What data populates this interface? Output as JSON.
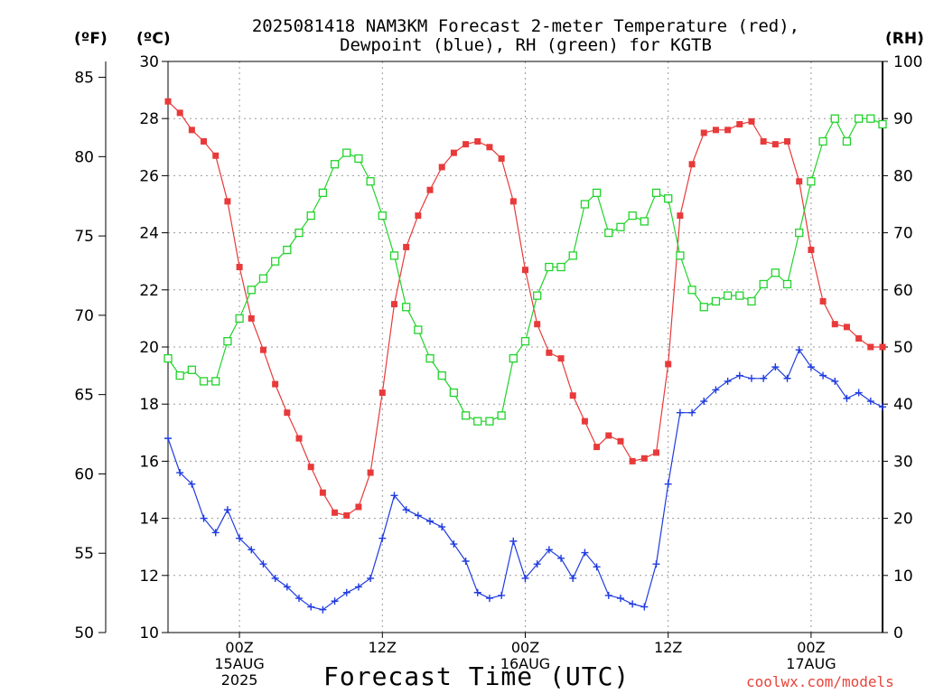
{
  "chart_data": {
    "type": "line",
    "title_line1": "2025081418 NAM3KM Forecast 2-meter Temperature (red),",
    "title_line2": "Dewpoint (blue), RH (green) for KGTB",
    "unit_f": "(ºF)",
    "unit_c": "(ºC)",
    "unit_rh": "(RH)",
    "xlabel": "Forecast Time (UTC)",
    "credit": "coolwx.com/models",
    "x_range_hours": [
      18,
      78
    ],
    "ylim_c": [
      10,
      30
    ],
    "ylim_f": [
      50,
      86
    ],
    "ylim_rh": [
      0,
      100
    ],
    "grid": true,
    "x_ticks": [
      {
        "hour": 24,
        "lines": [
          "00Z",
          "15AUG",
          "2025"
        ]
      },
      {
        "hour": 36,
        "lines": [
          "12Z"
        ]
      },
      {
        "hour": 48,
        "lines": [
          "00Z",
          "16AUG"
        ]
      },
      {
        "hour": 60,
        "lines": [
          "12Z"
        ]
      },
      {
        "hour": 72,
        "lines": [
          "00Z",
          "17AUG"
        ]
      }
    ],
    "y_ticks_c": [
      "10",
      "12",
      "14",
      "16",
      "18",
      "20",
      "22",
      "24",
      "26",
      "28",
      "30"
    ],
    "y_ticks_f": [
      "50",
      "55",
      "60",
      "65",
      "70",
      "75",
      "80",
      "85"
    ],
    "y_ticks_rh": [
      "0",
      "10",
      "20",
      "30",
      "40",
      "50",
      "60",
      "70",
      "80",
      "90",
      "100"
    ],
    "series": [
      {
        "name": "Temperature",
        "unit": "°C",
        "color": "#e83a3a",
        "marker": "filled-square",
        "x": [
          18,
          19,
          20,
          21,
          22,
          23,
          24,
          25,
          26,
          27,
          28,
          29,
          30,
          31,
          32,
          33,
          34,
          35,
          36,
          37,
          38,
          39,
          40,
          41,
          42,
          43,
          44,
          45,
          46,
          47,
          48,
          49,
          50,
          51,
          52,
          53,
          54,
          55,
          56,
          57,
          58,
          59,
          60,
          61,
          62,
          63,
          64,
          65,
          66,
          67,
          68,
          69,
          70,
          71,
          72,
          73,
          74,
          75,
          76,
          77,
          78
        ],
        "values": [
          28.6,
          28.2,
          27.6,
          27.2,
          26.7,
          25.1,
          22.8,
          21.0,
          19.9,
          18.7,
          17.7,
          16.8,
          15.8,
          14.9,
          14.2,
          14.1,
          14.4,
          15.6,
          18.4,
          21.5,
          23.5,
          24.6,
          25.5,
          26.3,
          26.8,
          27.1,
          27.2,
          27.0,
          26.6,
          25.1,
          22.7,
          20.8,
          19.8,
          19.6,
          18.3,
          17.4,
          16.5,
          16.9,
          16.7,
          16.0,
          16.1,
          16.3,
          19.4,
          24.6,
          26.4,
          27.5,
          27.6,
          27.6,
          27.8,
          27.9,
          27.2,
          27.1,
          27.2,
          25.8,
          23.4,
          21.6,
          20.8,
          20.7,
          20.3,
          20.0,
          20.0
        ]
      },
      {
        "name": "Dewpoint",
        "unit": "°C",
        "color": "#1f3be0",
        "marker": "plus",
        "x": [
          18,
          19,
          20,
          21,
          22,
          23,
          24,
          25,
          26,
          27,
          28,
          29,
          30,
          31,
          32,
          33,
          34,
          35,
          36,
          37,
          38,
          39,
          40,
          41,
          42,
          43,
          44,
          45,
          46,
          47,
          48,
          49,
          50,
          51,
          52,
          53,
          54,
          55,
          56,
          57,
          58,
          59,
          60,
          61,
          62,
          63,
          64,
          65,
          66,
          67,
          68,
          69,
          70,
          71,
          72,
          73,
          74,
          75,
          76,
          77,
          78
        ],
        "values": [
          16.8,
          15.6,
          15.2,
          14.0,
          13.5,
          14.3,
          13.3,
          12.9,
          12.4,
          11.9,
          11.6,
          11.2,
          10.9,
          10.8,
          11.1,
          11.4,
          11.6,
          11.9,
          13.3,
          14.8,
          14.3,
          14.1,
          13.9,
          13.7,
          13.1,
          12.5,
          11.4,
          11.2,
          11.3,
          13.2,
          11.9,
          12.4,
          12.9,
          12.6,
          11.9,
          12.8,
          12.3,
          11.3,
          11.2,
          11.0,
          10.9,
          12.4,
          15.2,
          17.7,
          17.7,
          18.1,
          18.5,
          18.8,
          19.0,
          18.9,
          18.9,
          19.3,
          18.9,
          19.9,
          19.3,
          19.0,
          18.8,
          18.2,
          18.4,
          18.1,
          17.9
        ]
      },
      {
        "name": "RH",
        "unit": "%",
        "color": "#22d32c",
        "marker": "open-square",
        "x": [
          18,
          19,
          20,
          21,
          22,
          23,
          24,
          25,
          26,
          27,
          28,
          29,
          30,
          31,
          32,
          33,
          34,
          35,
          36,
          37,
          38,
          39,
          40,
          41,
          42,
          43,
          44,
          45,
          46,
          47,
          48,
          49,
          50,
          51,
          52,
          53,
          54,
          55,
          56,
          57,
          58,
          59,
          60,
          61,
          62,
          63,
          64,
          65,
          66,
          67,
          68,
          69,
          70,
          71,
          72,
          73,
          74,
          75,
          76,
          77,
          78
        ],
        "values": [
          48,
          45,
          46,
          44,
          44,
          51,
          55,
          60,
          62,
          65,
          67,
          70,
          73,
          77,
          82,
          84,
          83,
          79,
          73,
          66,
          57,
          53,
          48,
          45,
          42,
          38,
          37,
          37,
          38,
          48,
          51,
          59,
          64,
          64,
          66,
          75,
          77,
          70,
          71,
          73,
          72,
          77,
          76,
          66,
          60,
          57,
          58,
          59,
          59,
          58,
          61,
          63,
          61,
          70,
          79,
          86,
          90,
          86,
          90,
          90,
          89
        ]
      }
    ]
  }
}
